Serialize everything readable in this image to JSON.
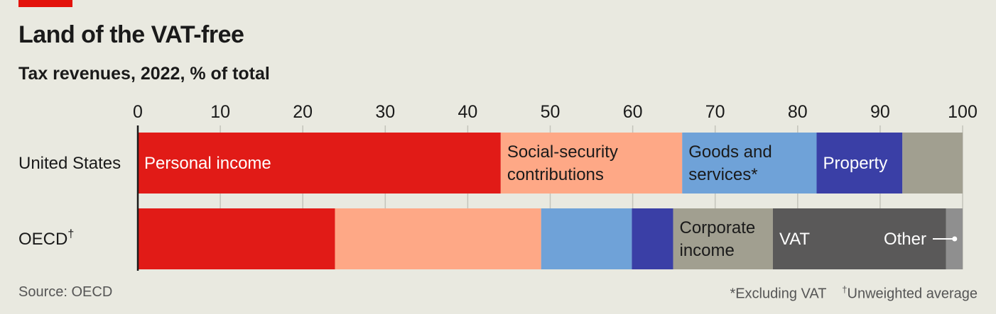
{
  "colors": {
    "personal_income": "#e11b17",
    "social_security": "#fea886",
    "goods_services": "#6fa2d8",
    "property": "#3a3fa6",
    "corporate_income": "#a19f90",
    "vat": "#5a5959",
    "other": "#8f8f8f",
    "accent": "#e3120b"
  },
  "header": {
    "title": "Land of the VAT-free",
    "subtitle": "Tax revenues, 2022, % of total"
  },
  "footer": {
    "source": "Source: OECD",
    "note1": "*Excluding VAT",
    "note2_mark": "†",
    "note2": "Unweighted average"
  },
  "chart_data": {
    "type": "bar",
    "orientation": "horizontal",
    "stacked": true,
    "xlim": [
      0,
      100
    ],
    "x_ticks": [
      0,
      10,
      20,
      30,
      40,
      50,
      60,
      70,
      80,
      90,
      100
    ],
    "grid": true,
    "rows": [
      {
        "label": "United States",
        "mark": "",
        "segments": [
          {
            "key": "personal_income",
            "value": 44.0,
            "label": [
              "Personal income"
            ]
          },
          {
            "key": "social_security",
            "value": 22.0,
            "label": [
              "Social-security",
              "contributions"
            ]
          },
          {
            "key": "goods_services",
            "value": 16.3,
            "label": [
              "Goods and",
              "services*"
            ]
          },
          {
            "key": "property",
            "value": 10.4,
            "label": [
              "Property"
            ]
          },
          {
            "key": "corporate_income",
            "value": 7.3,
            "label": []
          }
        ]
      },
      {
        "label": "OECD",
        "mark": "†",
        "segments": [
          {
            "key": "personal_income",
            "value": 23.9,
            "label": []
          },
          {
            "key": "social_security",
            "value": 25.0,
            "label": []
          },
          {
            "key": "goods_services",
            "value": 11.0,
            "label": []
          },
          {
            "key": "property",
            "value": 5.0,
            "label": []
          },
          {
            "key": "corporate_income",
            "value": 12.1,
            "label": [
              "Corporate",
              "income"
            ]
          },
          {
            "key": "vat",
            "value": 21.0,
            "label": [
              "VAT"
            ]
          },
          {
            "key": "other",
            "value": 2.0,
            "label": []
          }
        ]
      }
    ],
    "annotation": "Other"
  }
}
